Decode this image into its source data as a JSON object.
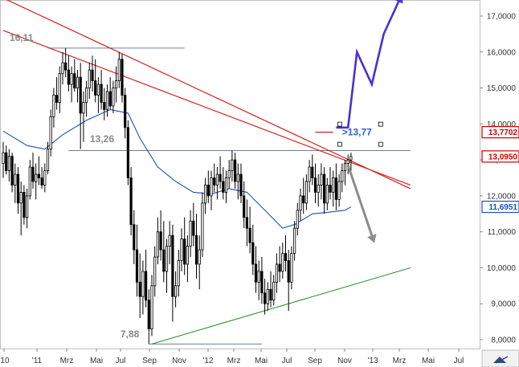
{
  "chart_data": {
    "type": "candlestick",
    "y_axis": {
      "position": "right",
      "ylim": [
        7.85,
        17.5
      ],
      "ticks": [
        "17,0000",
        "16,0000",
        "15,0000",
        "14,0000",
        "13,0000",
        "12,0000",
        "11,0000",
        "10,0000",
        "9,0000",
        "8,0000"
      ],
      "tick_values": [
        17,
        16,
        15,
        14,
        13,
        12,
        11,
        10,
        9,
        8
      ]
    },
    "x_axis": {
      "ticks": [
        "'10",
        "'11",
        "Mrz",
        "Mai",
        "Jul",
        "Sep",
        "Nov",
        "'12",
        "Mrz",
        "Mai",
        "Jul",
        "Sep",
        "Nov",
        "'13",
        "Mrz",
        "Mai",
        "Jul"
      ]
    },
    "price_badges": {
      "upper": {
        "text": "13,7702",
        "value": 13.7702,
        "color": "#cc0000"
      },
      "current": {
        "text": "13,0950",
        "value": 13.095,
        "color": "#cc0000"
      },
      "moving_average": {
        "text": "11,6951",
        "value": 11.6951,
        "color": "#1f4fb5"
      }
    },
    "annotations": {
      "high_2011": "16,11",
      "support_level": "13,26",
      "low_2011": "7,88",
      "target": ">13,77"
    },
    "levels": {
      "high_2011": 16.11,
      "support": 13.26,
      "low_2011": 7.88,
      "target": 13.77
    },
    "colors": {
      "candles": "#000000",
      "moving_average": "#1f4fb5",
      "downtrend": "#d42020",
      "uptrend": "#1e8b1e",
      "bull_scenario": "#4b2fd6",
      "bear_scenario": "#8c8c8c",
      "horizontal_lines": "#6e7f96"
    },
    "candles": [
      [
        12.9,
        13.5,
        12.5,
        13.2
      ],
      [
        13.2,
        13.4,
        12.6,
        12.7
      ],
      [
        12.7,
        13.3,
        12.4,
        13.1
      ],
      [
        13.1,
        13.2,
        12.1,
        12.3
      ],
      [
        12.3,
        12.9,
        11.8,
        12.6
      ],
      [
        12.6,
        12.8,
        11.5,
        11.8
      ],
      [
        11.8,
        12.4,
        10.9,
        12.1
      ],
      [
        12.1,
        12.3,
        11.2,
        11.4
      ],
      [
        11.4,
        12.2,
        11.1,
        12.0
      ],
      [
        12.0,
        13.0,
        11.9,
        12.8
      ],
      [
        12.8,
        13.2,
        12.2,
        12.4
      ],
      [
        12.4,
        12.9,
        11.9,
        12.6
      ],
      [
        12.6,
        13.1,
        12.3,
        12.5
      ],
      [
        12.5,
        12.8,
        12.2,
        12.3
      ],
      [
        12.3,
        12.9,
        12.1,
        12.7
      ],
      [
        12.7,
        13.5,
        12.6,
        13.3
      ],
      [
        13.3,
        14.4,
        13.1,
        14.2
      ],
      [
        14.2,
        15.0,
        13.9,
        14.8
      ],
      [
        14.8,
        15.3,
        14.4,
        14.6
      ],
      [
        14.6,
        15.6,
        14.3,
        15.4
      ],
      [
        15.4,
        16.0,
        15.1,
        15.7
      ],
      [
        15.7,
        16.11,
        15.3,
        15.5
      ],
      [
        15.5,
        15.9,
        14.9,
        15.1
      ],
      [
        15.1,
        15.6,
        14.6,
        15.4
      ],
      [
        15.4,
        15.8,
        14.9,
        15.0
      ],
      [
        15.0,
        15.5,
        14.6,
        15.3
      ],
      [
        15.3,
        15.7,
        13.3,
        14.3
      ],
      [
        14.3,
        14.9,
        13.5,
        14.6
      ],
      [
        14.6,
        15.2,
        14.2,
        15.0
      ],
      [
        15.0,
        15.7,
        14.7,
        15.5
      ],
      [
        15.5,
        15.9,
        14.9,
        15.2
      ],
      [
        15.2,
        15.8,
        14.6,
        14.8
      ],
      [
        14.8,
        15.3,
        14.3,
        15.1
      ],
      [
        15.1,
        15.5,
        14.4,
        14.6
      ],
      [
        14.6,
        15.0,
        14.1,
        14.4
      ],
      [
        14.4,
        15.1,
        14.2,
        14.9
      ],
      [
        14.9,
        15.3,
        14.4,
        14.5
      ],
      [
        14.5,
        15.2,
        14.3,
        15.0
      ],
      [
        15.0,
        15.6,
        14.6,
        15.2
      ],
      [
        15.2,
        16.0,
        15.0,
        15.8
      ],
      [
        15.8,
        15.95,
        14.6,
        14.8
      ],
      [
        14.8,
        15.0,
        13.6,
        13.9
      ],
      [
        13.9,
        14.1,
        12.3,
        12.5
      ],
      [
        12.5,
        12.8,
        10.9,
        11.2
      ],
      [
        11.2,
        11.6,
        10.1,
        10.5
      ],
      [
        10.5,
        11.2,
        9.2,
        9.6
      ],
      [
        9.6,
        10.4,
        8.6,
        9.2
      ],
      [
        9.2,
        10.2,
        8.7,
        9.9
      ],
      [
        9.9,
        10.5,
        8.9,
        9.1
      ],
      [
        9.1,
        9.4,
        7.88,
        8.3
      ],
      [
        8.3,
        9.8,
        8.1,
        9.5
      ],
      [
        9.5,
        10.6,
        9.2,
        10.3
      ],
      [
        10.3,
        11.4,
        10.1,
        11.0
      ],
      [
        11.0,
        11.6,
        10.2,
        10.5
      ],
      [
        10.5,
        11.3,
        9.6,
        9.9
      ],
      [
        9.9,
        10.8,
        9.3,
        10.6
      ],
      [
        10.6,
        11.3,
        10.1,
        10.9
      ],
      [
        10.9,
        11.2,
        8.5,
        9.2
      ],
      [
        9.2,
        9.9,
        8.9,
        9.5
      ],
      [
        9.5,
        10.5,
        9.2,
        10.2
      ],
      [
        10.2,
        11.1,
        9.9,
        10.8
      ],
      [
        10.8,
        11.4,
        9.8,
        10.1
      ],
      [
        10.1,
        10.9,
        9.6,
        10.6
      ],
      [
        10.6,
        11.6,
        10.3,
        11.3
      ],
      [
        11.3,
        11.8,
        10.6,
        10.9
      ],
      [
        10.9,
        11.5,
        9.7,
        10.1
      ],
      [
        10.1,
        10.9,
        9.4,
        10.5
      ],
      [
        10.5,
        12.1,
        10.3,
        11.8
      ],
      [
        11.8,
        12.5,
        11.5,
        12.3
      ],
      [
        12.3,
        12.7,
        11.8,
        12.0
      ],
      [
        12.0,
        12.7,
        11.6,
        12.5
      ],
      [
        12.5,
        12.9,
        12.1,
        12.3
      ],
      [
        12.3,
        12.8,
        11.9,
        12.6
      ],
      [
        12.6,
        13.1,
        12.2,
        12.4
      ],
      [
        12.4,
        12.8,
        11.9,
        12.1
      ],
      [
        12.1,
        12.7,
        11.8,
        12.5
      ],
      [
        12.5,
        13.0,
        12.2,
        12.7
      ],
      [
        12.7,
        13.26,
        12.4,
        13.0
      ],
      [
        13.0,
        13.2,
        12.2,
        12.4
      ],
      [
        12.4,
        12.9,
        11.9,
        12.6
      ],
      [
        12.6,
        12.9,
        11.8,
        12.0
      ],
      [
        12.0,
        12.4,
        11.1,
        11.4
      ],
      [
        11.4,
        11.9,
        10.6,
        11.1
      ],
      [
        11.1,
        11.7,
        10.4,
        10.7
      ],
      [
        10.7,
        11.2,
        9.8,
        10.1
      ],
      [
        10.1,
        10.6,
        9.3,
        9.6
      ],
      [
        9.6,
        10.2,
        9.1,
        9.9
      ],
      [
        9.9,
        10.3,
        9.0,
        9.3
      ],
      [
        9.3,
        9.7,
        8.7,
        9.0
      ],
      [
        9.0,
        9.6,
        8.8,
        9.4
      ],
      [
        9.4,
        9.9,
        8.9,
        9.1
      ],
      [
        9.1,
        9.8,
        8.95,
        9.6
      ],
      [
        9.6,
        10.4,
        9.3,
        10.1
      ],
      [
        10.1,
        10.6,
        9.6,
        9.9
      ],
      [
        9.9,
        10.7,
        9.7,
        10.4
      ],
      [
        10.4,
        10.9,
        9.9,
        10.2
      ],
      [
        10.2,
        10.5,
        8.8,
        9.6
      ],
      [
        9.6,
        10.6,
        9.4,
        10.4
      ],
      [
        10.4,
        11.3,
        10.2,
        11.1
      ],
      [
        11.1,
        11.8,
        10.9,
        11.6
      ],
      [
        11.6,
        12.2,
        11.3,
        12.0
      ],
      [
        12.0,
        12.5,
        11.5,
        11.8
      ],
      [
        11.8,
        12.6,
        11.6,
        12.4
      ],
      [
        12.4,
        13.0,
        12.1,
        12.8
      ],
      [
        12.8,
        13.15,
        12.3,
        12.5
      ],
      [
        12.5,
        12.9,
        11.8,
        12.1
      ],
      [
        12.1,
        12.6,
        11.7,
        12.3
      ],
      [
        12.3,
        12.9,
        11.9,
        12.6
      ],
      [
        12.6,
        12.8,
        11.5,
        11.8
      ],
      [
        11.8,
        12.5,
        11.6,
        12.3
      ],
      [
        12.3,
        12.8,
        11.9,
        12.1
      ],
      [
        12.1,
        12.7,
        11.7,
        12.5
      ],
      [
        12.5,
        12.9,
        11.6,
        11.9
      ],
      [
        11.9,
        12.6,
        11.7,
        12.4
      ],
      [
        12.4,
        12.9,
        12.1,
        12.7
      ],
      [
        12.7,
        13.0,
        12.3,
        12.9
      ],
      [
        12.9,
        13.15,
        12.6,
        13.0
      ],
      [
        13.0,
        13.2,
        12.7,
        13.095
      ]
    ],
    "moving_average": [
      [
        0,
        13.8
      ],
      [
        8,
        13.4
      ],
      [
        14,
        13.3
      ],
      [
        20,
        13.7
      ],
      [
        28,
        14.1
      ],
      [
        36,
        14.4
      ],
      [
        42,
        14.3
      ],
      [
        46,
        13.6
      ],
      [
        52,
        12.8
      ],
      [
        58,
        12.4
      ],
      [
        64,
        12.1
      ],
      [
        70,
        12.05
      ],
      [
        76,
        12.2
      ],
      [
        82,
        12.1
      ],
      [
        88,
        11.6
      ],
      [
        94,
        11.1
      ],
      [
        98,
        11.2
      ],
      [
        104,
        11.5
      ],
      [
        110,
        11.55
      ],
      [
        115,
        11.6
      ],
      [
        117,
        11.6951
      ]
    ],
    "trendlines": {
      "downtrend": [
        {
          "x": [
            0,
            137
          ],
          "y": [
            17.5,
            12.2
          ]
        },
        {
          "x": [
            0,
            137
          ],
          "y": [
            16.6,
            12.3
          ]
        }
      ],
      "uptrend": {
        "x": [
          50,
          137
        ],
        "y": [
          7.88,
          10.0
        ]
      },
      "high_line": {
        "x": [
          15,
          61
        ],
        "y": [
          16.11,
          16.11
        ]
      },
      "support_line": {
        "x": [
          22,
          137
        ],
        "y": [
          13.26,
          13.26
        ]
      },
      "low_line": {
        "x": [
          49,
          87
        ],
        "y": [
          7.88,
          7.88
        ]
      },
      "target_line": {
        "x": [
          105,
          111
        ],
        "y": [
          13.77,
          13.77
        ]
      }
    },
    "scenarios": {
      "bull": {
        "x": [
          112,
          116,
          119,
          124,
          128,
          133
        ],
        "y": [
          13.9,
          13.9,
          16.0,
          15.1,
          16.5,
          17.4
        ]
      },
      "bear": {
        "x": [
          116,
          124
        ],
        "y": [
          12.85,
          10.9
        ]
      }
    }
  }
}
